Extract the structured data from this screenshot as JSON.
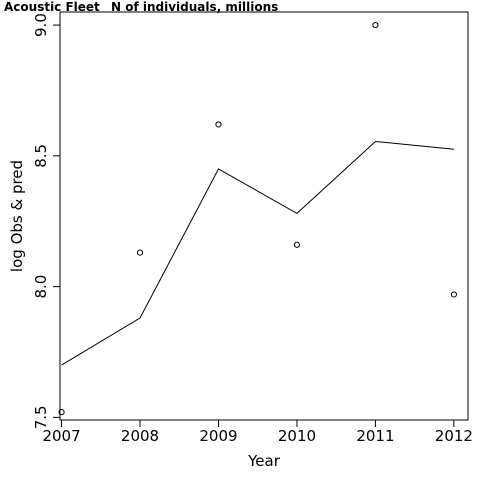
{
  "chart_data": {
    "type": "scatter",
    "title_left": "Acoustic Fleet",
    "title_right": "N of individuals, millions",
    "xlabel": "Year",
    "ylabel": "log Obs & pred",
    "xlim": [
      2006.98,
      2012.18
    ],
    "ylim": [
      7.49,
      9.05
    ],
    "x_ticks": [
      2007,
      2008,
      2009,
      2010,
      2011,
      2012
    ],
    "y_ticks": [
      "7.5",
      "8.0",
      "8.5",
      "9.0"
    ],
    "series": [
      {
        "kind": "points",
        "x": [
          2007,
          2008,
          2009,
          2010,
          2011,
          2012
        ],
        "y": [
          7.52,
          8.13,
          8.62,
          8.16,
          9.0,
          7.97
        ]
      },
      {
        "kind": "line",
        "x": [
          2007,
          2008,
          2009,
          2010,
          2011,
          2012
        ],
        "y": [
          7.7,
          7.88,
          8.45,
          8.28,
          8.555,
          8.525
        ]
      }
    ],
    "grid": false,
    "legend": "none"
  }
}
